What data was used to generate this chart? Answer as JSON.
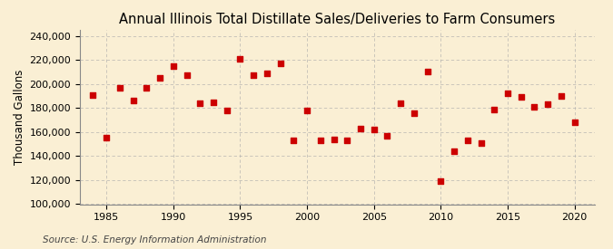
{
  "title": "Annual Illinois Total Distillate Sales/Deliveries to Farm Consumers",
  "ylabel": "Thousand Gallons",
  "source": "Source: U.S. Energy Information Administration",
  "background_color": "#faefd4",
  "marker_color": "#cc0000",
  "grid_color": "#aaaaaa",
  "years": [
    1984,
    1985,
    1986,
    1987,
    1988,
    1989,
    1990,
    1991,
    1992,
    1993,
    1994,
    1995,
    1996,
    1997,
    1998,
    1999,
    2000,
    2001,
    2002,
    2003,
    2004,
    2005,
    2006,
    2007,
    2008,
    2009,
    2010,
    2011,
    2012,
    2013,
    2014,
    2015,
    2016,
    2017,
    2018,
    2019,
    2020
  ],
  "values": [
    191000,
    155000,
    197000,
    186000,
    197000,
    205000,
    215000,
    207000,
    184000,
    185000,
    178000,
    221000,
    207000,
    209000,
    217000,
    153000,
    178000,
    153000,
    154000,
    153000,
    163000,
    162000,
    157000,
    184000,
    176000,
    210000,
    119000,
    144000,
    153000,
    151000,
    179000,
    192000,
    189000,
    181000,
    183000,
    190000,
    168000
  ],
  "ylim": [
    100000,
    245000
  ],
  "yticks": [
    100000,
    120000,
    140000,
    160000,
    180000,
    200000,
    220000,
    240000
  ],
  "xlim": [
    1983.0,
    2021.5
  ],
  "xticks": [
    1985,
    1990,
    1995,
    2000,
    2005,
    2010,
    2015,
    2020
  ],
  "title_fontsize": 10.5,
  "label_fontsize": 8.5,
  "tick_fontsize": 8,
  "source_fontsize": 7.5,
  "marker_size": 4.5
}
